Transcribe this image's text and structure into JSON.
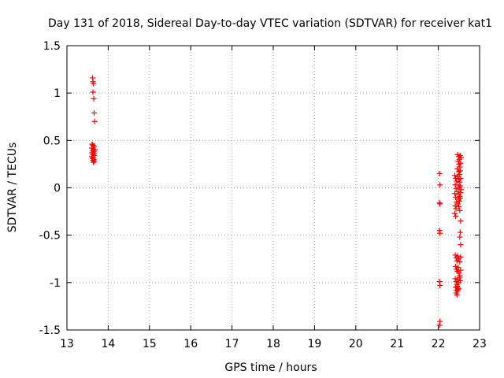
{
  "chart_data": {
    "type": "scatter",
    "title": "Day 131 of 2018, Sidereal Day-to-day VTEC variation (SDTVAR) for receiver kat1",
    "xlabel": "GPS time / hours",
    "ylabel": "SDTVAR / TECUs",
    "xlim": [
      13,
      23
    ],
    "ylim": [
      -1.5,
      1.5
    ],
    "xticks": [
      "13",
      "14",
      "15",
      "16",
      "17",
      "18",
      "19",
      "20",
      "21",
      "22",
      "23"
    ],
    "yticks": [
      "-1.5",
      "-1",
      "-0.5",
      "0",
      "0.5",
      "1",
      "1.5"
    ],
    "grid": true,
    "marker": "+",
    "color": "#ff0000",
    "series": [
      {
        "points": [
          [
            13.62,
            1.16
          ],
          [
            13.63,
            1.12
          ],
          [
            13.64,
            1.1
          ],
          [
            13.63,
            1.01
          ],
          [
            13.65,
            0.94
          ],
          [
            13.66,
            0.79
          ],
          [
            13.67,
            0.7
          ],
          [
            13.61,
            0.46
          ],
          [
            13.63,
            0.45
          ],
          [
            13.66,
            0.44
          ],
          [
            13.6,
            0.42
          ],
          [
            13.64,
            0.41
          ],
          [
            13.68,
            0.4
          ],
          [
            13.62,
            0.39
          ],
          [
            13.65,
            0.38
          ],
          [
            13.61,
            0.37
          ],
          [
            13.67,
            0.36
          ],
          [
            13.63,
            0.35
          ],
          [
            13.66,
            0.34
          ],
          [
            13.6,
            0.33
          ],
          [
            13.64,
            0.32
          ],
          [
            13.62,
            0.31
          ],
          [
            13.65,
            0.3
          ],
          [
            13.63,
            0.29
          ],
          [
            13.66,
            0.28
          ],
          [
            13.64,
            0.27
          ],
          [
            22.03,
            0.15
          ],
          [
            22.04,
            0.03
          ],
          [
            22.03,
            -0.16
          ],
          [
            22.04,
            -0.17
          ],
          [
            22.03,
            -0.45
          ],
          [
            22.04,
            -0.48
          ],
          [
            22.03,
            -0.99
          ],
          [
            22.04,
            -1.03
          ],
          [
            22.04,
            -1.41
          ],
          [
            22.03,
            -1.45
          ],
          [
            22.4,
            0.13
          ],
          [
            22.42,
            0.1
          ],
          [
            22.44,
            0.07
          ],
          [
            22.41,
            0.03
          ],
          [
            22.43,
            -0.01
          ],
          [
            22.4,
            -0.06
          ],
          [
            22.42,
            -0.1
          ],
          [
            22.44,
            -0.15
          ],
          [
            22.41,
            -0.19
          ],
          [
            22.43,
            -0.22
          ],
          [
            22.4,
            -0.27
          ],
          [
            22.42,
            -0.3
          ],
          [
            22.47,
            0.35
          ],
          [
            22.49,
            0.33
          ],
          [
            22.51,
            0.3
          ],
          [
            22.53,
            0.34
          ],
          [
            22.55,
            0.32
          ],
          [
            22.48,
            0.28
          ],
          [
            22.5,
            0.25
          ],
          [
            22.52,
            0.22
          ],
          [
            22.54,
            0.26
          ],
          [
            22.46,
            0.2
          ],
          [
            22.49,
            0.17
          ],
          [
            22.51,
            0.14
          ],
          [
            22.53,
            0.18
          ],
          [
            22.47,
            0.12
          ],
          [
            22.5,
            0.09
          ],
          [
            22.52,
            0.06
          ],
          [
            22.54,
            0.1
          ],
          [
            22.48,
            0.03
          ],
          [
            22.51,
            0.0
          ],
          [
            22.53,
            0.02
          ],
          [
            22.55,
            -0.02
          ],
          [
            22.47,
            -0.04
          ],
          [
            22.5,
            -0.07
          ],
          [
            22.52,
            -0.09
          ],
          [
            22.54,
            -0.05
          ],
          [
            22.49,
            -0.12
          ],
          [
            22.51,
            -0.14
          ],
          [
            22.53,
            -0.11
          ],
          [
            22.48,
            -0.17
          ],
          [
            22.5,
            -0.2
          ],
          [
            22.52,
            -0.24
          ],
          [
            22.54,
            -0.35
          ],
          [
            22.53,
            -0.47
          ],
          [
            22.52,
            -0.52
          ],
          [
            22.54,
            -0.6
          ],
          [
            22.41,
            -0.71
          ],
          [
            22.43,
            -0.74
          ],
          [
            22.45,
            -0.77
          ],
          [
            22.47,
            -0.72
          ],
          [
            22.49,
            -0.75
          ],
          [
            22.52,
            -0.78
          ],
          [
            22.54,
            -0.73
          ],
          [
            22.42,
            -0.83
          ],
          [
            22.44,
            -0.86
          ],
          [
            22.46,
            -0.88
          ],
          [
            22.48,
            -0.84
          ],
          [
            22.5,
            -0.9
          ],
          [
            22.52,
            -0.93
          ],
          [
            22.54,
            -0.87
          ],
          [
            22.41,
            -0.96
          ],
          [
            22.43,
            -0.99
          ],
          [
            22.45,
            -1.02
          ],
          [
            22.47,
            -0.97
          ],
          [
            22.49,
            -1.0
          ],
          [
            22.51,
            -0.95
          ],
          [
            22.53,
            -0.98
          ],
          [
            22.42,
            -1.05
          ],
          [
            22.44,
            -1.08
          ],
          [
            22.46,
            -1.04
          ],
          [
            22.48,
            -1.07
          ],
          [
            22.5,
            -1.06
          ],
          [
            22.43,
            -1.11
          ],
          [
            22.45,
            -1.13
          ],
          [
            22.47,
            -1.09
          ]
        ]
      }
    ]
  }
}
